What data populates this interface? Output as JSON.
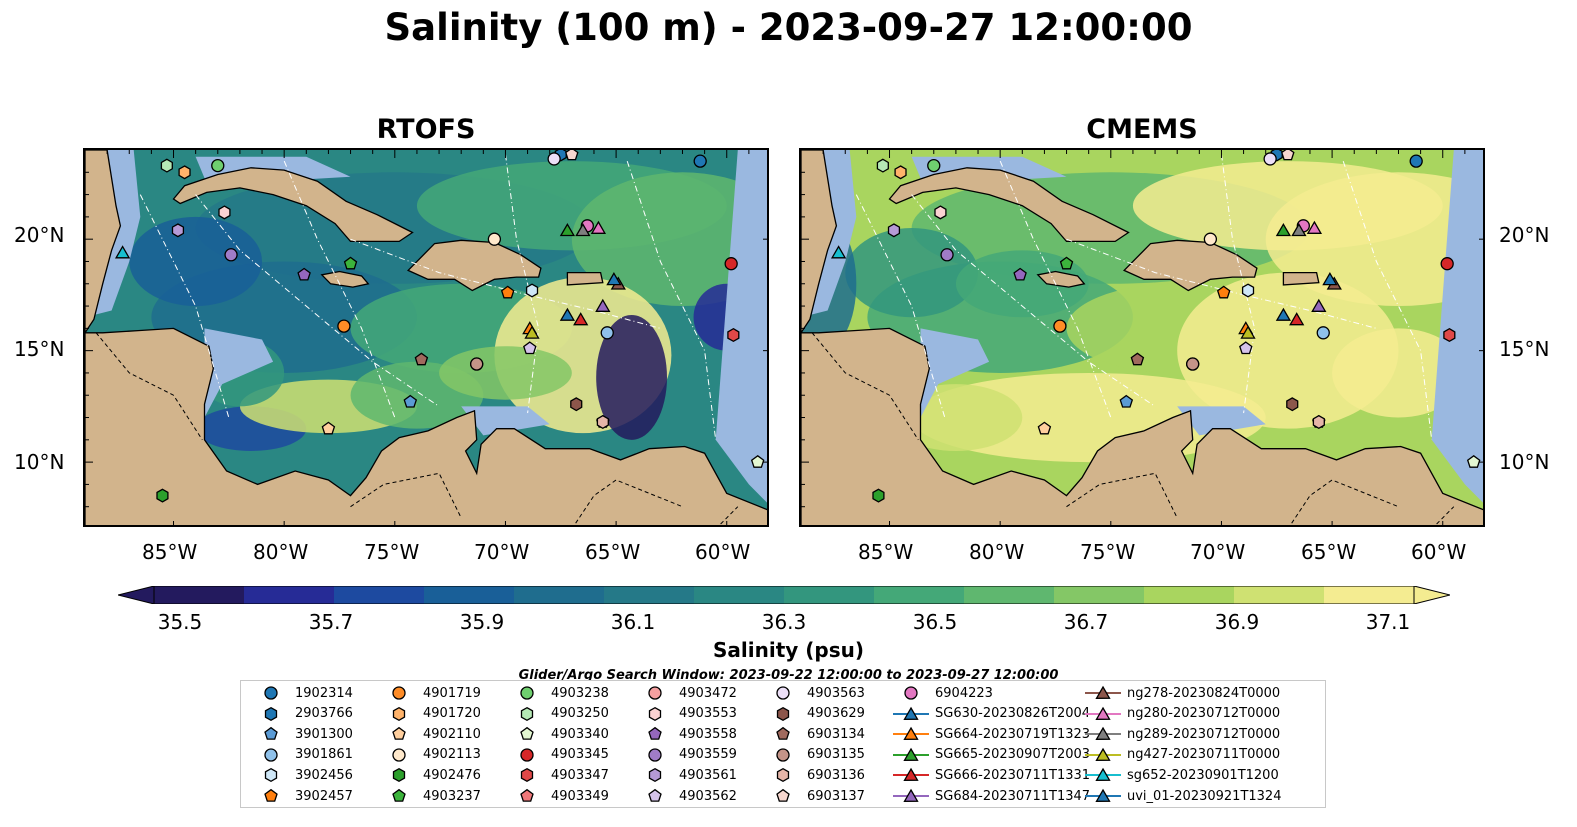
{
  "title": "Salinity (100 m) - 2023-09-27 12:00:00",
  "colors": {
    "land": "#d2b48c",
    "shelf": "#9ab8e0",
    "deep_low": "#2b1a6e",
    "colormap": [
      "#231a5e",
      "#262b96",
      "#1d4aa0",
      "#195f98",
      "#1f6d8e",
      "#257988",
      "#2a8783",
      "#33967e",
      "#44a878",
      "#5fb76f",
      "#84c766",
      "#a9d55f",
      "#cfe172",
      "#f4ec91"
    ]
  },
  "chart_data": {
    "type": "heatmap",
    "variable": "Salinity (100 m)",
    "colorbar": {
      "label": "Salinity (psu)",
      "ticks": [
        "35.5",
        "35.7",
        "35.9",
        "36.1",
        "36.3",
        "36.5",
        "36.7",
        "36.9",
        "37.1"
      ],
      "range": [
        35.5,
        37.2
      ],
      "extend": "both"
    },
    "panels": [
      {
        "title": "RTOFS",
        "lat_ticks": [
          "20°N",
          "15°N",
          "10°N"
        ],
        "lat_ticks_side": "left",
        "lon_ticks": [
          "85°W",
          "80°W",
          "75°W",
          "70°W",
          "65°W",
          "60°W"
        ]
      },
      {
        "title": "CMEMS",
        "lat_ticks": [
          "20°N",
          "15°N",
          "10°N"
        ],
        "lat_ticks_side": "right",
        "lon_ticks": [
          "85°W",
          "80°W",
          "75°W",
          "70°W",
          "65°W",
          "60°W"
        ]
      }
    ],
    "extent": {
      "lon": [
        -89,
        -58
      ],
      "lat": [
        7,
        24
      ]
    },
    "search_window": "Glider/Argo Search Window: 2023-09-22 12:00:00 to 2023-09-27 12:00:00",
    "legend": [
      {
        "label": "1902314",
        "marker": "circle",
        "color": "#1f77b4"
      },
      {
        "label": "2903766",
        "marker": "hexagon",
        "color": "#1f77b4"
      },
      {
        "label": "3901300",
        "marker": "pentagon",
        "color": "#5b9bd5"
      },
      {
        "label": "3901861",
        "marker": "circle",
        "color": "#8fc1ea"
      },
      {
        "label": "3902456",
        "marker": "hexagon",
        "color": "#cfe7f7"
      },
      {
        "label": "3902457",
        "marker": "pentagon",
        "color": "#ff7f0e"
      },
      {
        "label": "4901719",
        "marker": "circle",
        "color": "#ff8c26"
      },
      {
        "label": "4901720",
        "marker": "hexagon",
        "color": "#ffb36b"
      },
      {
        "label": "4902110",
        "marker": "pentagon",
        "color": "#ffcf9e"
      },
      {
        "label": "4902113",
        "marker": "circle",
        "color": "#ffe9cc"
      },
      {
        "label": "4902476",
        "marker": "hexagon",
        "color": "#2ca02c"
      },
      {
        "label": "4903237",
        "marker": "pentagon",
        "color": "#3cb43c"
      },
      {
        "label": "4903238",
        "marker": "circle",
        "color": "#6fcf6f"
      },
      {
        "label": "4903250",
        "marker": "hexagon",
        "color": "#b5e8b5"
      },
      {
        "label": "4903340",
        "marker": "pentagon",
        "color": "#e3f7d2"
      },
      {
        "label": "4903345",
        "marker": "circle",
        "color": "#d62728"
      },
      {
        "label": "4903347",
        "marker": "hexagon",
        "color": "#e04848"
      },
      {
        "label": "4903349",
        "marker": "pentagon",
        "color": "#f0787a"
      },
      {
        "label": "4903472",
        "marker": "circle",
        "color": "#f5a0a0"
      },
      {
        "label": "4903553",
        "marker": "hexagon",
        "color": "#fbd2d2"
      },
      {
        "label": "4903558",
        "marker": "pentagon",
        "color": "#9467bd"
      },
      {
        "label": "4903559",
        "marker": "circle",
        "color": "#a07cc8"
      },
      {
        "label": "4903561",
        "marker": "hexagon",
        "color": "#b69ad6"
      },
      {
        "label": "4903562",
        "marker": "pentagon",
        "color": "#d5c3ea"
      },
      {
        "label": "4903563",
        "marker": "circle",
        "color": "#ecdff7"
      },
      {
        "label": "4903629",
        "marker": "hexagon",
        "color": "#8c564b"
      },
      {
        "label": "6903134",
        "marker": "pentagon",
        "color": "#a06a5e"
      },
      {
        "label": "6903135",
        "marker": "circle",
        "color": "#c49488"
      },
      {
        "label": "6903136",
        "marker": "hexagon",
        "color": "#e5b5a8"
      },
      {
        "label": "6903137",
        "marker": "pentagon",
        "color": "#f7d7cf"
      },
      {
        "label": "6904223",
        "marker": "circle",
        "color": "#e377c2"
      },
      {
        "label": "SG630-20230826T2004",
        "marker": "triangle",
        "color": "#1f77b4",
        "line": true
      },
      {
        "label": "SG664-20230719T1323",
        "marker": "triangle",
        "color": "#ff7f0e",
        "line": true
      },
      {
        "label": "SG665-20230907T2003",
        "marker": "triangle",
        "color": "#2ca02c",
        "line": true
      },
      {
        "label": "SG666-20230711T1331",
        "marker": "triangle",
        "color": "#d62728",
        "line": true
      },
      {
        "label": "SG684-20230711T1347",
        "marker": "triangle",
        "color": "#9467bd",
        "line": true
      },
      {
        "label": "ng278-20230824T0000",
        "marker": "triangle",
        "color": "#8c564b",
        "line": true
      },
      {
        "label": "ng280-20230712T0000",
        "marker": "triangle",
        "color": "#e377c2",
        "line": true
      },
      {
        "label": "ng289-20230712T0000",
        "marker": "triangle",
        "color": "#7f7f7f",
        "line": true
      },
      {
        "label": "ng427-20230711T0000",
        "marker": "triangle",
        "color": "#bcbd22",
        "line": true
      },
      {
        "label": "sg652-20230901T1200",
        "marker": "triangle",
        "color": "#17becf",
        "line": true
      },
      {
        "label": "uvi_01-20230921T1324",
        "marker": "triangle",
        "color": "#1f77b4",
        "line": true
      }
    ],
    "observations": [
      {
        "id": "1902314",
        "lon": -61.2,
        "lat": 23.5
      },
      {
        "id": "2903766",
        "lon": -67.5,
        "lat": 23.8
      },
      {
        "id": "3901300",
        "lon": -74.3,
        "lat": 12.7
      },
      {
        "id": "3901861",
        "lon": -65.4,
        "lat": 15.8
      },
      {
        "id": "3902456",
        "lon": -68.8,
        "lat": 17.7
      },
      {
        "id": "3902457",
        "lon": -69.9,
        "lat": 17.6
      },
      {
        "id": "4901719",
        "lon": -77.3,
        "lat": 16.1
      },
      {
        "id": "4901720",
        "lon": -84.5,
        "lat": 23.0
      },
      {
        "id": "4902110",
        "lon": -78.0,
        "lat": 11.5
      },
      {
        "id": "4902113",
        "lon": -70.5,
        "lat": 20.0
      },
      {
        "id": "4902476",
        "lon": -85.5,
        "lat": 8.5
      },
      {
        "id": "4903237",
        "lon": -77.0,
        "lat": 18.9
      },
      {
        "id": "4903238",
        "lon": -83.0,
        "lat": 23.3
      },
      {
        "id": "4903250",
        "lon": -85.3,
        "lat": 23.3
      },
      {
        "id": "4903340",
        "lon": -58.6,
        "lat": 10.0
      },
      {
        "id": "4903345",
        "lon": -59.8,
        "lat": 18.9
      },
      {
        "id": "4903347",
        "lon": -59.7,
        "lat": 15.7
      },
      {
        "id": "4903349",
        "lon": -65.6,
        "lat": 11.8
      },
      {
        "id": "4903472",
        "lon": -71.3,
        "lat": 14.4
      },
      {
        "id": "4903553",
        "lon": -82.7,
        "lat": 21.2
      },
      {
        "id": "4903558",
        "lon": -79.1,
        "lat": 18.4
      },
      {
        "id": "4903559",
        "lon": -82.4,
        "lat": 19.3
      },
      {
        "id": "4903561",
        "lon": -84.8,
        "lat": 20.4
      },
      {
        "id": "4903562",
        "lon": -68.9,
        "lat": 15.1
      },
      {
        "id": "4903563",
        "lon": -67.8,
        "lat": 23.6
      },
      {
        "id": "4903629",
        "lon": -66.8,
        "lat": 12.6
      },
      {
        "id": "6903134",
        "lon": -73.8,
        "lat": 14.6
      },
      {
        "id": "6903135",
        "lon": -71.3,
        "lat": 14.4
      },
      {
        "id": "6903136",
        "lon": -65.6,
        "lat": 11.8
      },
      {
        "id": "6903137",
        "lon": -67.0,
        "lat": 23.8
      },
      {
        "id": "6904223",
        "lon": -66.3,
        "lat": 20.6
      },
      {
        "id": "SG630-20230826T2004",
        "lon": -67.2,
        "lat": 16.6
      },
      {
        "id": "SG664-20230719T1323",
        "lon": -68.9,
        "lat": 16.0
      },
      {
        "id": "SG665-20230907T2003",
        "lon": -67.2,
        "lat": 20.4
      },
      {
        "id": "SG666-20230711T1331",
        "lon": -66.6,
        "lat": 16.4
      },
      {
        "id": "SG684-20230711T1347",
        "lon": -65.6,
        "lat": 17.0
      },
      {
        "id": "ng278-20230824T0000",
        "lon": -64.9,
        "lat": 18.0
      },
      {
        "id": "ng280-20230712T0000",
        "lon": -65.8,
        "lat": 20.5
      },
      {
        "id": "ng289-20230712T0000",
        "lon": -66.5,
        "lat": 20.4
      },
      {
        "id": "ng427-20230711T0000",
        "lon": -68.8,
        "lat": 15.8
      },
      {
        "id": "sg652-20230901T1200",
        "lon": -87.3,
        "lat": 19.4
      },
      {
        "id": "uvi_01-20230921T1324",
        "lon": -65.1,
        "lat": 18.2
      }
    ]
  }
}
